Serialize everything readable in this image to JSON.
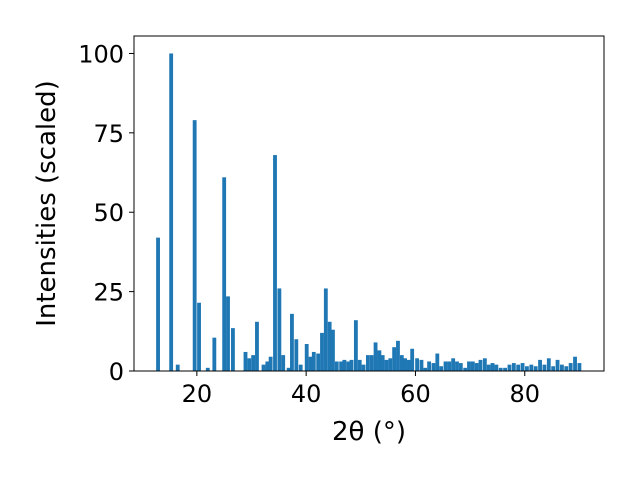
{
  "chart_data": {
    "type": "bar",
    "xlabel": "2θ (°)",
    "ylabel": "Intensities (scaled)",
    "xlim": [
      8.5,
      94.5
    ],
    "ylim": [
      0,
      105.5
    ],
    "xticks": [
      20,
      40,
      60,
      80
    ],
    "yticks": [
      0,
      25,
      50,
      75,
      100
    ],
    "bar_color": "#1f77b4",
    "grid": false,
    "bar_width": 0.7,
    "x": [
      12.9,
      15.3,
      16.5,
      19.6,
      20.4,
      22.0,
      23.2,
      25.0,
      25.7,
      26.6,
      28.9,
      29.6,
      30.3,
      31.0,
      32.2,
      32.9,
      33.5,
      34.3,
      35.1,
      35.8,
      36.8,
      37.4,
      38.2,
      39.0,
      40.1,
      40.8,
      41.4,
      42.2,
      42.9,
      43.6,
      44.3,
      44.9,
      45.6,
      46.4,
      47.0,
      47.7,
      48.3,
      49.1,
      49.8,
      50.5,
      51.3,
      52.0,
      52.7,
      53.4,
      54.0,
      54.7,
      55.4,
      56.1,
      56.8,
      57.5,
      58.1,
      58.8,
      59.4,
      60.3,
      61.1,
      61.8,
      62.5,
      63.3,
      64.0,
      64.7,
      65.5,
      66.2,
      66.9,
      67.6,
      68.3,
      69.1,
      69.8,
      70.5,
      71.2,
      71.9,
      72.7,
      73.4,
      74.1,
      74.8,
      75.6,
      76.4,
      77.2,
      78.0,
      78.8,
      79.6,
      80.4,
      81.2,
      82.0,
      82.8,
      83.6,
      84.4,
      85.2,
      86.0,
      86.8,
      87.6,
      88.4,
      89.2,
      90.0
    ],
    "values": [
      42,
      100,
      2,
      79,
      21.5,
      1,
      10.5,
      61,
      23.5,
      13.5,
      6,
      4,
      5,
      15.5,
      2,
      3,
      4.5,
      68,
      26,
      5,
      1,
      18,
      10,
      2,
      8.5,
      4.5,
      6,
      5.5,
      12,
      26,
      15.5,
      13,
      3,
      3,
      3.5,
      3,
      3.5,
      16,
      3.5,
      2,
      5,
      5,
      9,
      6.5,
      5,
      3.5,
      4,
      7.5,
      9.5,
      5,
      4,
      3.5,
      7,
      4,
      3.5,
      1,
      3,
      2.5,
      5.5,
      1.5,
      3,
      3,
      4,
      3,
      2.5,
      1,
      3,
      3,
      2.5,
      3.5,
      4,
      2,
      2.5,
      2,
      1,
      1,
      2,
      2.5,
      2,
      2.5,
      1.5,
      2,
      1.5,
      3.5,
      2,
      4,
      1.5,
      3.5,
      2,
      1.5,
      2.5,
      4.5,
      2.5
    ]
  }
}
